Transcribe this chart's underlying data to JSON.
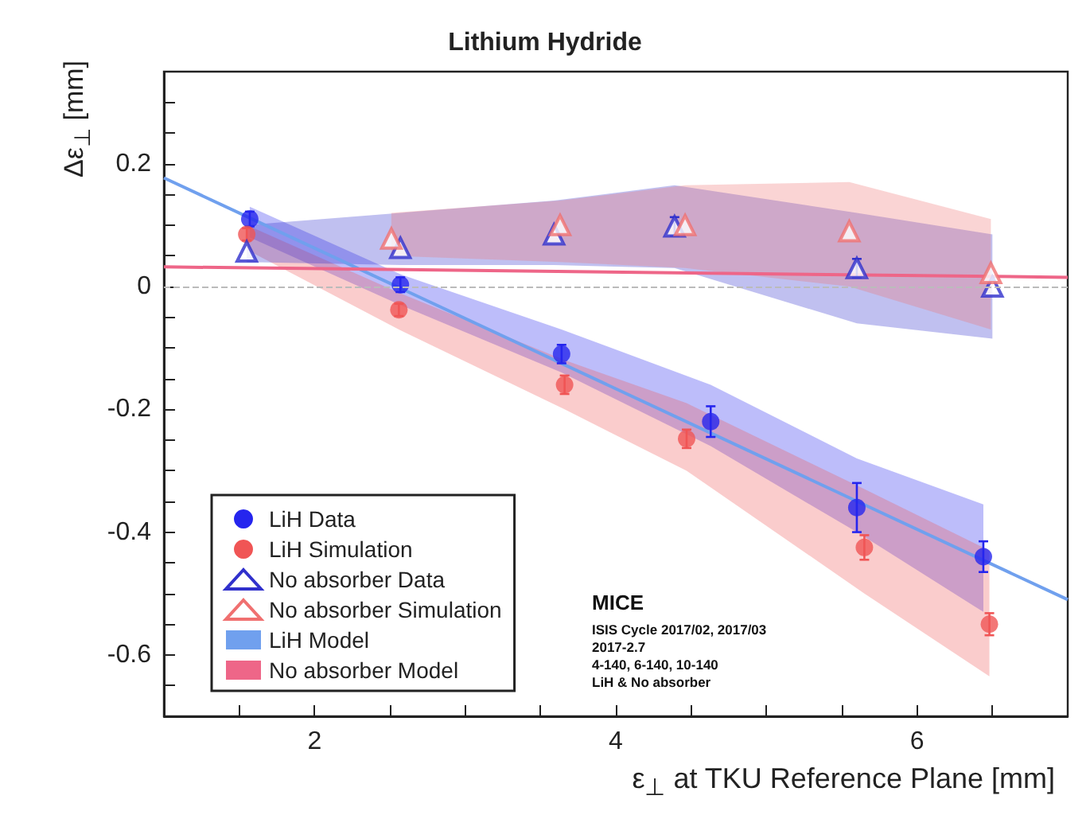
{
  "chart_data": {
    "type": "scatter",
    "title": "Lithium Hydride",
    "xlabel": "ε$_{⊥}$ at TKU Reference Plane [mm]",
    "ylabel": "Δε$_{⊥}$ [mm]",
    "xlim": [
      1,
      7
    ],
    "ylim": [
      -0.7,
      0.35
    ],
    "xticks": [
      {
        "value": 1.5,
        "label": null
      },
      2,
      {
        "value": 2.5,
        "label": null
      },
      {
        "value": 3,
        "label": null
      },
      {
        "value": 3.5,
        "label": null
      },
      4,
      {
        "value": 4.5,
        "label": null
      },
      {
        "value": 5,
        "label": null
      },
      {
        "value": 5.5,
        "label": null
      },
      6,
      {
        "value": 6.5,
        "label": null
      }
    ],
    "yticks": [
      {
        "value": -0.65,
        "label": null
      },
      -0.6,
      {
        "value": -0.55,
        "label": null
      },
      {
        "value": -0.5,
        "label": null
      },
      {
        "value": -0.45,
        "label": null
      },
      -0.4,
      {
        "value": -0.35,
        "label": null
      },
      {
        "value": -0.3,
        "label": null
      },
      {
        "value": -0.25,
        "label": null
      },
      -0.2,
      {
        "value": -0.15,
        "label": null
      },
      {
        "value": -0.1,
        "label": null
      },
      {
        "value": -0.05,
        "label": null
      },
      0,
      {
        "value": 0.05,
        "label": null
      },
      {
        "value": 0.1,
        "label": null
      },
      {
        "value": 0.15,
        "label": null
      },
      0.2,
      {
        "value": 0.25,
        "label": null
      },
      {
        "value": 0.3,
        "label": null
      }
    ],
    "grid": false,
    "legend": "bottom left",
    "series": [
      {
        "name": "LiH Data",
        "type": "scatter",
        "marker": "circle",
        "color": "#2525ee",
        "x": [
          1.57,
          2.57,
          3.64,
          4.63,
          5.6,
          6.44
        ],
        "values": [
          0.11,
          0.003,
          -0.11,
          -0.22,
          -0.36,
          -0.44
        ],
        "errors": [
          0.012,
          0.012,
          0.015,
          0.025,
          0.04,
          0.025
        ],
        "lower": [
          0.08,
          -0.03,
          -0.14,
          -0.26,
          -0.4,
          -0.53
        ],
        "upper": [
          0.13,
          0.02,
          -0.07,
          -0.16,
          -0.28,
          -0.355
        ]
      },
      {
        "name": "LiH Simulation",
        "type": "scatter",
        "marker": "circle",
        "color": "#f05555",
        "x": [
          1.55,
          2.56,
          3.66,
          4.47,
          5.65,
          6.48
        ],
        "values": [
          0.085,
          -0.038,
          -0.16,
          -0.248,
          -0.425,
          -0.55
        ],
        "errors": [
          0.01,
          0.01,
          0.015,
          0.015,
          0.02,
          0.018
        ],
        "lower": [
          0.06,
          -0.07,
          -0.2,
          -0.3,
          -0.5,
          -0.635
        ],
        "upper": [
          0.1,
          -0.01,
          -0.12,
          -0.19,
          -0.33,
          -0.43
        ]
      },
      {
        "name": "No absorber Data",
        "type": "scatter",
        "marker": "triangle",
        "color": "#3030cc",
        "x": [
          1.55,
          2.57,
          3.59,
          4.39,
          5.6,
          6.5
        ],
        "values": [
          0.057,
          0.063,
          0.085,
          0.098,
          0.03,
          0
        ],
        "errors": [
          null,
          null,
          null,
          0.015,
          0.015,
          null
        ],
        "lower": [
          0.04,
          0.035,
          0.035,
          0.03,
          -0.06,
          -0.085
        ],
        "upper": [
          0.1,
          0.12,
          0.14,
          0.165,
          0.12,
          0.085
        ]
      },
      {
        "name": "No absorber Simulation",
        "type": "scatter",
        "marker": "triangle",
        "color": "#f07070",
        "x": [
          2.51,
          3.63,
          4.46,
          5.55,
          6.49
        ],
        "values": [
          0.078,
          0.1,
          0.1,
          0.09,
          0.022
        ],
        "lower": [
          0.05,
          0.04,
          0.03,
          0,
          -0.07
        ],
        "upper": [
          0.12,
          0.14,
          0.165,
          0.17,
          0.11
        ]
      },
      {
        "name": "LiH Model",
        "type": "line",
        "marker": "none",
        "color": "#70a0ee",
        "x": [
          1,
          7
        ],
        "values": [
          0.177,
          -0.51
        ]
      },
      {
        "name": "No absorber Model",
        "type": "line",
        "marker": "none",
        "color": "#ee6688",
        "x": [
          1,
          7
        ],
        "values": [
          0.032,
          0.015
        ]
      }
    ],
    "ref_lines": [
      {
        "axis": "y",
        "value": 0,
        "color": "#bbbbbb",
        "line_style": "dashed"
      }
    ],
    "annotations": [
      "MICE",
      "ISIS Cycle 2017/02, 2017/03",
      "2017-2.7",
      "4-140, 6-140, 10-140",
      "LiH & No absorber"
    ]
  }
}
